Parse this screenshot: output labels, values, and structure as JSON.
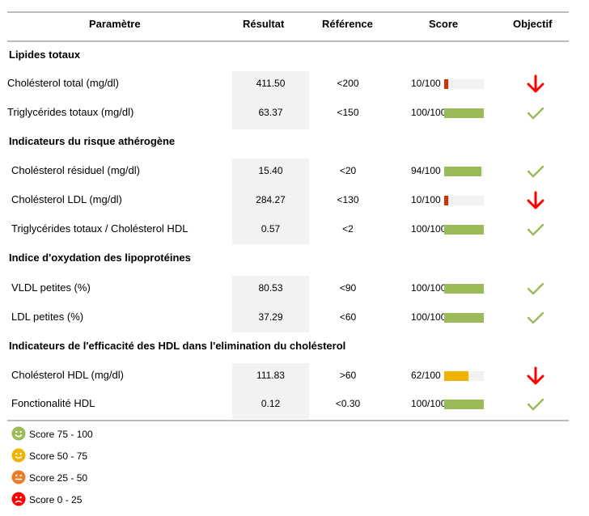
{
  "headers": {
    "param": "Paramètre",
    "result": "Résultat",
    "reference": "Référence",
    "score": "Score",
    "objective": "Objectif"
  },
  "colors": {
    "good": "#9bbb59",
    "mid": "#f0b400",
    "low": "#e87e2a",
    "bad": "#ff0000",
    "bar_bad": "#cc3300",
    "shade": "#f2f2f2"
  },
  "sections": [
    {
      "title": "Lipides totaux",
      "rows": [
        {
          "name": "Cholésterol total (mg/dl)",
          "result": "411.50",
          "reference": "<200",
          "score_label": "10/100",
          "score": 10,
          "status": "bad"
        },
        {
          "name": "Triglycérides totaux (mg/dl)",
          "result": "63.37",
          "reference": "<150",
          "score_label": "100/100",
          "score": 100,
          "status": "good"
        }
      ]
    },
    {
      "title": "Indicateurs du risque athérogène",
      "rows": [
        {
          "name": "Cholésterol résiduel (mg/dl)",
          "result": "15.40",
          "reference": "<20",
          "score_label": "94/100",
          "score": 94,
          "status": "good"
        },
        {
          "name": "Cholésterol LDL (mg/dl)",
          "result": "284.27",
          "reference": "<130",
          "score_label": "10/100",
          "score": 10,
          "status": "bad"
        },
        {
          "name": "Triglycérides totaux / Cholésterol HDL",
          "result": "0.57",
          "reference": "<2",
          "score_label": "100/100",
          "score": 100,
          "status": "good"
        }
      ]
    },
    {
      "title": "Indice d'oxydation des lipoprotéines",
      "rows": [
        {
          "name": "VLDL petites (%)",
          "result": "80.53",
          "reference": "<90",
          "score_label": "100/100",
          "score": 100,
          "status": "good"
        },
        {
          "name": "LDL petites (%)",
          "result": "37.29",
          "reference": "<60",
          "score_label": "100/100",
          "score": 100,
          "status": "good"
        }
      ]
    },
    {
      "title": "Indicateurs de l'efficacité des HDL dans l'elimination du cholésterol",
      "rows": [
        {
          "name": "Cholésterol HDL (mg/dl)",
          "result": "111.83",
          "reference": ">60",
          "score_label": "62/100",
          "score": 62,
          "status": "bad"
        },
        {
          "name": "Fonctionalité HDL",
          "result": "0.12",
          "reference": "<0.30",
          "score_label": "100/100",
          "score": 100,
          "status": "good"
        }
      ]
    }
  ],
  "legend": [
    {
      "label": "Score 75 - 100",
      "face": "happy-face-icon",
      "color": "#9bbb59"
    },
    {
      "label": "Score 50 - 75",
      "face": "smile-face-icon",
      "color": "#f0b400"
    },
    {
      "label": "Score 25 - 50",
      "face": "neutral-face-icon",
      "color": "#e87e2a"
    },
    {
      "label": "Score 0 - 25",
      "face": "sad-face-icon",
      "color": "#ff0000"
    }
  ]
}
